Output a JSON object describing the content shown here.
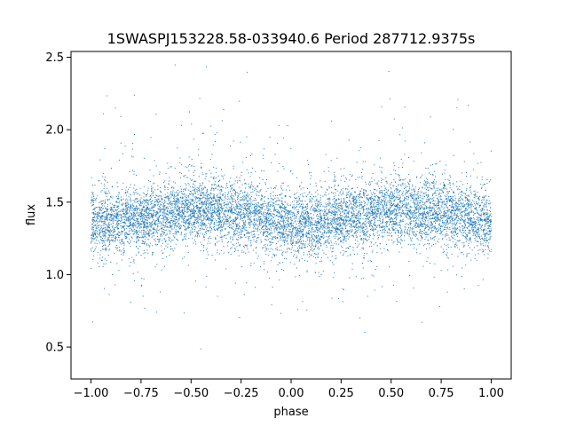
{
  "chart_data": {
    "type": "scatter",
    "title": "1SWASPJ153228.58-033940.6 Period 287712.9375s",
    "xlabel": "phase",
    "ylabel": "flux",
    "xlim": [
      -1.1,
      1.1
    ],
    "ylim": [
      0.28,
      2.54
    ],
    "xticks": [
      -1.0,
      -0.75,
      -0.5,
      -0.25,
      0.0,
      0.25,
      0.5,
      0.75,
      1.0
    ],
    "xtick_labels": [
      "−1.00",
      "−0.75",
      "−0.50",
      "−0.25",
      "0.00",
      "0.25",
      "0.50",
      "0.75",
      "1.00"
    ],
    "yticks": [
      0.5,
      1.0,
      1.5,
      2.0,
      2.5
    ],
    "ytick_labels": [
      "0.5",
      "1.0",
      "1.5",
      "2.0",
      "2.5"
    ],
    "grid": false,
    "point_color": "#1f77b4",
    "series": [
      {
        "x_range": [
          -1.0,
          1.0
        ],
        "flux_core_range": [
          1.1,
          1.7
        ],
        "flux_median_profile": [
          {
            "phase": -1.0,
            "flux": 1.36
          },
          {
            "phase": -0.75,
            "flux": 1.38
          },
          {
            "phase": -0.5,
            "flux": 1.45
          },
          {
            "phase": -0.25,
            "flux": 1.43
          },
          {
            "phase": 0.0,
            "flux": 1.34
          },
          {
            "phase": 0.25,
            "flux": 1.38
          },
          {
            "phase": 0.5,
            "flux": 1.45
          },
          {
            "phase": 0.75,
            "flux": 1.43
          },
          {
            "phase": 1.0,
            "flux": 1.36
          }
        ],
        "flux_outlier_range": [
          0.38,
          2.45
        ]
      }
    ]
  }
}
